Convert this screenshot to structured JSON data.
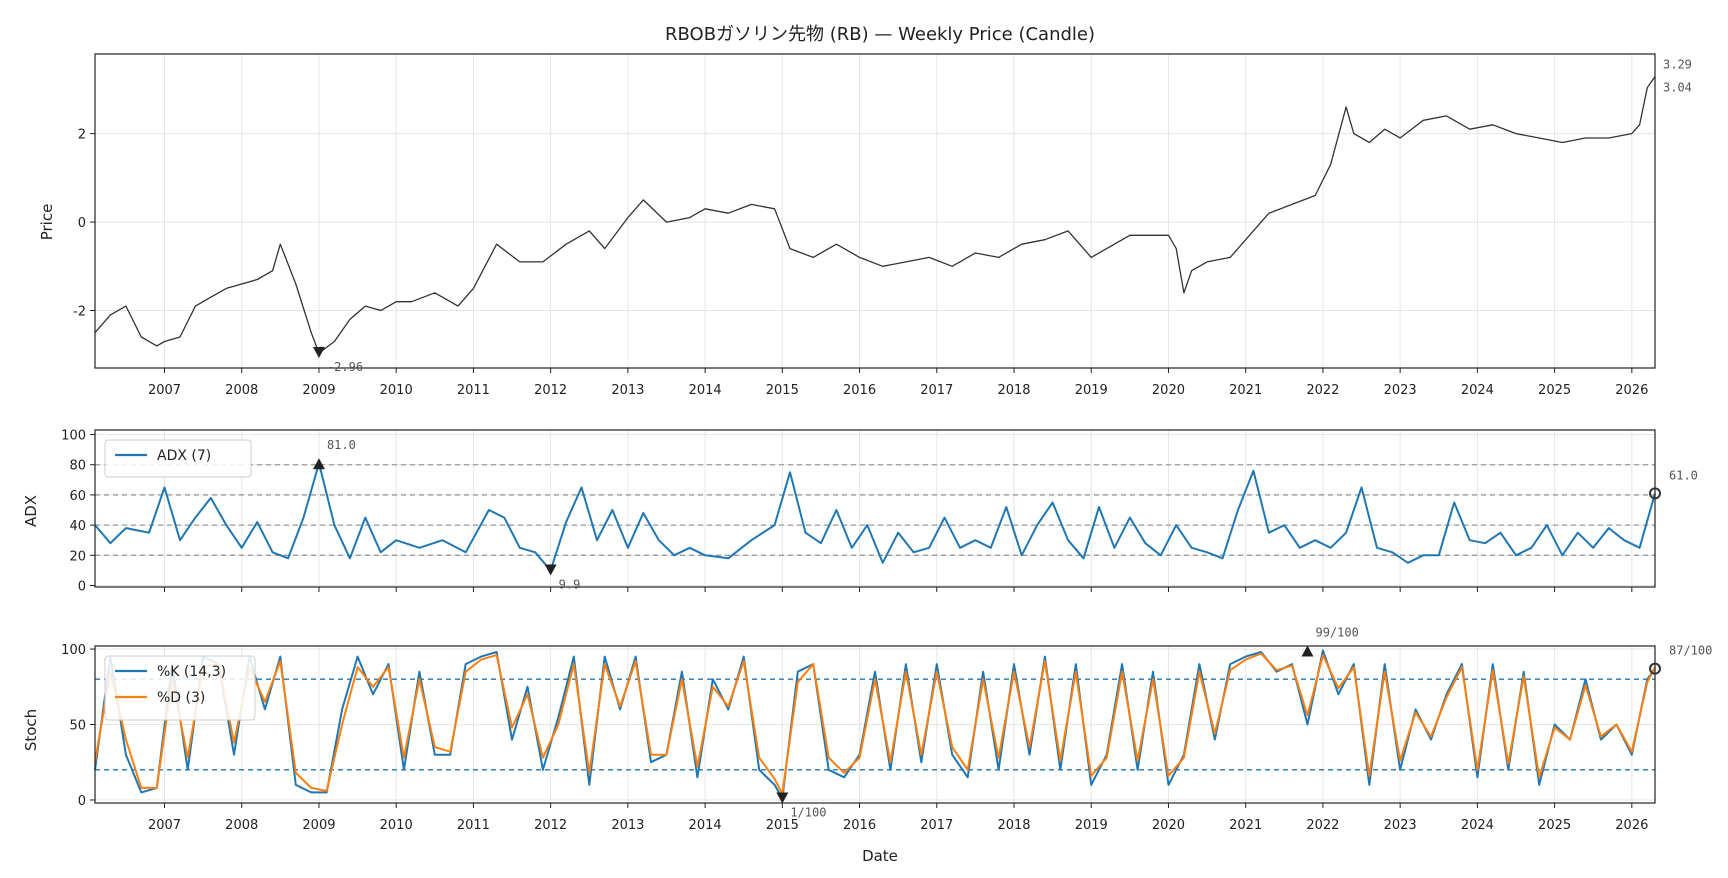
{
  "colors": {
    "price": "#333333",
    "adx": "#1f77b4",
    "k": "#1f77b4",
    "d": "#ff7f0e",
    "grid": "#e6e6e6",
    "ref_gray": "#999999",
    "ref_blue": "#1f77b4",
    "marker": "#222222"
  },
  "chart_data": [
    {
      "id": "price",
      "type": "line",
      "title": "RBOBガソリン先物 (RB) — Weekly Price (Candle)",
      "xlabel": "",
      "ylabel": "Price",
      "xlim": [
        2006.1,
        2026.3
      ],
      "ylim": [
        -3.3,
        3.8
      ],
      "yticks": [
        -2,
        0,
        2
      ],
      "xticks": [
        "2007",
        "2008",
        "2009",
        "2010",
        "2011",
        "2012",
        "2013",
        "2014",
        "2015",
        "2016",
        "2017",
        "2018",
        "2019",
        "2020",
        "2021",
        "2022",
        "2023",
        "2024",
        "2025",
        "2026"
      ],
      "series": [
        {
          "name": "Price",
          "x": [
            2006.1,
            2006.3,
            2006.5,
            2006.7,
            2006.9,
            2007.0,
            2007.2,
            2007.4,
            2007.6,
            2007.8,
            2008.0,
            2008.2,
            2008.4,
            2008.5,
            2008.7,
            2008.9,
            2009.0,
            2009.2,
            2009.4,
            2009.6,
            2009.8,
            2010.0,
            2010.2,
            2010.5,
            2010.8,
            2011.0,
            2011.3,
            2011.6,
            2011.9,
            2012.2,
            2012.5,
            2012.7,
            2013.0,
            2013.2,
            2013.5,
            2013.8,
            2014.0,
            2014.3,
            2014.6,
            2014.9,
            2015.1,
            2015.4,
            2015.7,
            2016.0,
            2016.3,
            2016.6,
            2016.9,
            2017.2,
            2017.5,
            2017.8,
            2018.1,
            2018.4,
            2018.7,
            2019.0,
            2019.2,
            2019.5,
            2019.8,
            2020.0,
            2020.1,
            2020.2,
            2020.3,
            2020.5,
            2020.8,
            2021.0,
            2021.3,
            2021.6,
            2021.9,
            2022.1,
            2022.3,
            2022.4,
            2022.6,
            2022.8,
            2023.0,
            2023.3,
            2023.6,
            2023.9,
            2024.2,
            2024.5,
            2024.8,
            2025.1,
            2025.4,
            2025.7,
            2026.0,
            2026.1,
            2026.2,
            2026.3
          ],
          "values": [
            -2.5,
            -2.1,
            -1.9,
            -2.6,
            -2.8,
            -2.7,
            -2.6,
            -1.9,
            -1.7,
            -1.5,
            -1.4,
            -1.3,
            -1.1,
            -0.5,
            -1.4,
            -2.5,
            -2.96,
            -2.7,
            -2.2,
            -1.9,
            -2.0,
            -1.8,
            -1.8,
            -1.6,
            -1.9,
            -1.5,
            -0.5,
            -0.9,
            -0.9,
            -0.5,
            -0.2,
            -0.6,
            0.1,
            0.5,
            0.0,
            0.1,
            0.3,
            0.2,
            0.4,
            0.3,
            -0.6,
            -0.8,
            -0.5,
            -0.8,
            -1.0,
            -0.9,
            -0.8,
            -1.0,
            -0.7,
            -0.8,
            -0.5,
            -0.4,
            -0.2,
            -0.8,
            -0.6,
            -0.3,
            -0.3,
            -0.3,
            -0.6,
            -1.6,
            -1.1,
            -0.9,
            -0.8,
            -0.4,
            0.2,
            0.4,
            0.6,
            1.3,
            2.6,
            2.0,
            1.8,
            2.1,
            1.9,
            2.3,
            2.4,
            2.1,
            2.2,
            2.0,
            1.9,
            1.8,
            1.9,
            1.9,
            2.0,
            2.2,
            3.04,
            3.29
          ]
        }
      ],
      "annotations": [
        {
          "text": "-2.96",
          "x": 2009.0,
          "y": -2.96,
          "marker": "down"
        },
        {
          "text": "3.29",
          "x": 2026.3,
          "y": 3.29
        },
        {
          "text": "3.04",
          "x": 2026.3,
          "y": 3.04
        }
      ]
    },
    {
      "id": "adx",
      "type": "line",
      "ylabel": "ADX",
      "xlim": [
        2006.1,
        2026.3
      ],
      "ylim": [
        -1,
        103
      ],
      "yticks": [
        0,
        20,
        40,
        60,
        80,
        100
      ],
      "ref_lines": [
        20,
        40,
        60,
        80
      ],
      "legend": {
        "position": "top-left",
        "entries": [
          "ADX (7)"
        ]
      },
      "series": [
        {
          "name": "ADX (7)",
          "x": [
            2006.1,
            2006.3,
            2006.5,
            2006.8,
            2007.0,
            2007.2,
            2007.4,
            2007.6,
            2007.8,
            2008.0,
            2008.2,
            2008.4,
            2008.6,
            2008.8,
            2009.0,
            2009.2,
            2009.4,
            2009.6,
            2009.8,
            2010.0,
            2010.3,
            2010.6,
            2010.9,
            2011.2,
            2011.4,
            2011.6,
            2011.8,
            2012.0,
            2012.2,
            2012.4,
            2012.6,
            2012.8,
            2013.0,
            2013.2,
            2013.4,
            2013.6,
            2013.8,
            2014.0,
            2014.3,
            2014.6,
            2014.9,
            2015.1,
            2015.3,
            2015.5,
            2015.7,
            2015.9,
            2016.1,
            2016.3,
            2016.5,
            2016.7,
            2016.9,
            2017.1,
            2017.3,
            2017.5,
            2017.7,
            2017.9,
            2018.1,
            2018.3,
            2018.5,
            2018.7,
            2018.9,
            2019.1,
            2019.3,
            2019.5,
            2019.7,
            2019.9,
            2020.1,
            2020.3,
            2020.5,
            2020.7,
            2020.9,
            2021.1,
            2021.3,
            2021.5,
            2021.7,
            2021.9,
            2022.1,
            2022.3,
            2022.5,
            2022.7,
            2022.9,
            2023.1,
            2023.3,
            2023.5,
            2023.7,
            2023.9,
            2024.1,
            2024.3,
            2024.5,
            2024.7,
            2024.9,
            2025.1,
            2025.3,
            2025.5,
            2025.7,
            2025.9,
            2026.1,
            2026.3
          ],
          "values": [
            40,
            28,
            38,
            35,
            65,
            30,
            45,
            58,
            40,
            25,
            42,
            22,
            18,
            45,
            81,
            40,
            18,
            45,
            22,
            30,
            25,
            30,
            22,
            50,
            45,
            25,
            22,
            9.9,
            42,
            65,
            30,
            50,
            25,
            48,
            30,
            20,
            25,
            20,
            18,
            30,
            40,
            75,
            35,
            28,
            50,
            25,
            40,
            15,
            35,
            22,
            25,
            45,
            25,
            30,
            25,
            52,
            20,
            40,
            55,
            30,
            18,
            52,
            25,
            45,
            28,
            20,
            40,
            25,
            22,
            18,
            50,
            76,
            35,
            40,
            25,
            30,
            25,
            35,
            65,
            25,
            22,
            15,
            20,
            20,
            55,
            30,
            28,
            35,
            20,
            25,
            40,
            20,
            35,
            25,
            38,
            30,
            25,
            61
          ]
        }
      ],
      "annotations": [
        {
          "text": "81.0",
          "x": 2009.0,
          "y": 81.0,
          "marker": "up"
        },
        {
          "text": "9.9",
          "x": 2012.0,
          "y": 9.9,
          "marker": "down"
        },
        {
          "text": "61.0",
          "x": 2026.3,
          "y": 61.0,
          "marker": "circle"
        }
      ]
    },
    {
      "id": "stoch",
      "type": "line",
      "xlabel": "Date",
      "ylabel": "Stoch",
      "xlim": [
        2006.1,
        2026.3
      ],
      "ylim": [
        -2,
        102
      ],
      "yticks": [
        0,
        50,
        100
      ],
      "ref_lines": [
        20,
        80
      ],
      "xticks": [
        "2007",
        "2008",
        "2009",
        "2010",
        "2011",
        "2012",
        "2013",
        "2014",
        "2015",
        "2016",
        "2017",
        "2018",
        "2019",
        "2020",
        "2021",
        "2022",
        "2023",
        "2024",
        "2025",
        "2026"
      ],
      "legend": {
        "position": "top-left",
        "entries": [
          "%K (14,3)",
          "%D (3)"
        ]
      },
      "series": [
        {
          "name": "%K (14,3)",
          "x": [
            2006.1,
            2006.3,
            2006.5,
            2006.7,
            2006.9,
            2007.1,
            2007.3,
            2007.5,
            2007.7,
            2007.9,
            2008.1,
            2008.3,
            2008.5,
            2008.7,
            2008.9,
            2009.1,
            2009.3,
            2009.5,
            2009.7,
            2009.9,
            2010.1,
            2010.3,
            2010.5,
            2010.7,
            2010.9,
            2011.1,
            2011.3,
            2011.5,
            2011.7,
            2011.9,
            2012.1,
            2012.3,
            2012.5,
            2012.7,
            2012.9,
            2013.1,
            2013.3,
            2013.5,
            2013.7,
            2013.9,
            2014.1,
            2014.3,
            2014.5,
            2014.7,
            2014.9,
            2015.0,
            2015.2,
            2015.4,
            2015.6,
            2015.8,
            2016.0,
            2016.2,
            2016.4,
            2016.6,
            2016.8,
            2017.0,
            2017.2,
            2017.4,
            2017.6,
            2017.8,
            2018.0,
            2018.2,
            2018.4,
            2018.6,
            2018.8,
            2019.0,
            2019.2,
            2019.4,
            2019.6,
            2019.8,
            2020.0,
            2020.2,
            2020.4,
            2020.6,
            2020.8,
            2021.0,
            2021.2,
            2021.4,
            2021.6,
            2021.8,
            2022.0,
            2022.2,
            2022.4,
            2022.6,
            2022.8,
            2023.0,
            2023.2,
            2023.4,
            2023.6,
            2023.8,
            2024.0,
            2024.2,
            2024.4,
            2024.6,
            2024.8,
            2025.0,
            2025.2,
            2025.4,
            2025.6,
            2025.8,
            2026.0,
            2026.2,
            2026.3
          ],
          "values": [
            20,
            95,
            30,
            5,
            8,
            90,
            20,
            95,
            90,
            30,
            95,
            60,
            95,
            10,
            5,
            5,
            60,
            95,
            70,
            90,
            20,
            85,
            30,
            30,
            90,
            95,
            98,
            40,
            75,
            20,
            55,
            95,
            10,
            95,
            60,
            95,
            25,
            30,
            85,
            15,
            80,
            60,
            95,
            20,
            10,
            1,
            85,
            90,
            20,
            15,
            30,
            85,
            20,
            90,
            25,
            90,
            30,
            15,
            85,
            20,
            90,
            30,
            95,
            20,
            90,
            10,
            30,
            90,
            20,
            85,
            10,
            30,
            90,
            40,
            90,
            95,
            98,
            85,
            90,
            50,
            99,
            70,
            90,
            10,
            90,
            20,
            60,
            40,
            70,
            90,
            15,
            90,
            20,
            85,
            10,
            50,
            40,
            80,
            40,
            50,
            30,
            80,
            87
          ]
        },
        {
          "name": "%D (3)",
          "x": [
            2006.1,
            2006.3,
            2006.5,
            2006.7,
            2006.9,
            2007.1,
            2007.3,
            2007.5,
            2007.7,
            2007.9,
            2008.1,
            2008.3,
            2008.5,
            2008.7,
            2008.9,
            2009.1,
            2009.3,
            2009.5,
            2009.7,
            2009.9,
            2010.1,
            2010.3,
            2010.5,
            2010.7,
            2010.9,
            2011.1,
            2011.3,
            2011.5,
            2011.7,
            2011.9,
            2012.1,
            2012.3,
            2012.5,
            2012.7,
            2012.9,
            2013.1,
            2013.3,
            2013.5,
            2013.7,
            2013.9,
            2014.1,
            2014.3,
            2014.5,
            2014.7,
            2014.9,
            2015.0,
            2015.2,
            2015.4,
            2015.6,
            2015.8,
            2016.0,
            2016.2,
            2016.4,
            2016.6,
            2016.8,
            2017.0,
            2017.2,
            2017.4,
            2017.6,
            2017.8,
            2018.0,
            2018.2,
            2018.4,
            2018.6,
            2018.8,
            2019.0,
            2019.2,
            2019.4,
            2019.6,
            2019.8,
            2020.0,
            2020.2,
            2020.4,
            2020.6,
            2020.8,
            2021.0,
            2021.2,
            2021.4,
            2021.6,
            2021.8,
            2022.0,
            2022.2,
            2022.4,
            2022.6,
            2022.8,
            2023.0,
            2023.2,
            2023.4,
            2023.6,
            2023.8,
            2024.0,
            2024.2,
            2024.4,
            2024.6,
            2024.8,
            2025.0,
            2025.2,
            2025.4,
            2025.6,
            2025.8,
            2026.0,
            2026.2,
            2026.3
          ],
          "values": [
            25,
            85,
            40,
            8,
            8,
            80,
            28,
            88,
            90,
            38,
            88,
            65,
            92,
            18,
            8,
            6,
            50,
            88,
            75,
            88,
            28,
            80,
            35,
            32,
            85,
            93,
            96,
            48,
            70,
            28,
            50,
            90,
            18,
            90,
            62,
            92,
            30,
            30,
            80,
            22,
            75,
            62,
            92,
            28,
            14,
            4,
            78,
            90,
            28,
            18,
            28,
            80,
            25,
            85,
            30,
            85,
            35,
            20,
            80,
            28,
            85,
            35,
            92,
            26,
            85,
            16,
            28,
            85,
            26,
            80,
            16,
            28,
            85,
            44,
            86,
            93,
            97,
            86,
            89,
            56,
            96,
            74,
            88,
            16,
            85,
            26,
            58,
            42,
            68,
            88,
            20,
            86,
            24,
            82,
            15,
            48,
            40,
            76,
            42,
            50,
            32,
            78,
            88
          ]
        }
      ],
      "annotations": [
        {
          "text": "99/100",
          "x": 2021.8,
          "y": 99,
          "marker": "up"
        },
        {
          "text": "1/100",
          "x": 2015.0,
          "y": 1,
          "marker": "down"
        },
        {
          "text": "87/100",
          "x": 2026.3,
          "y": 87,
          "marker": "circle"
        }
      ]
    }
  ]
}
